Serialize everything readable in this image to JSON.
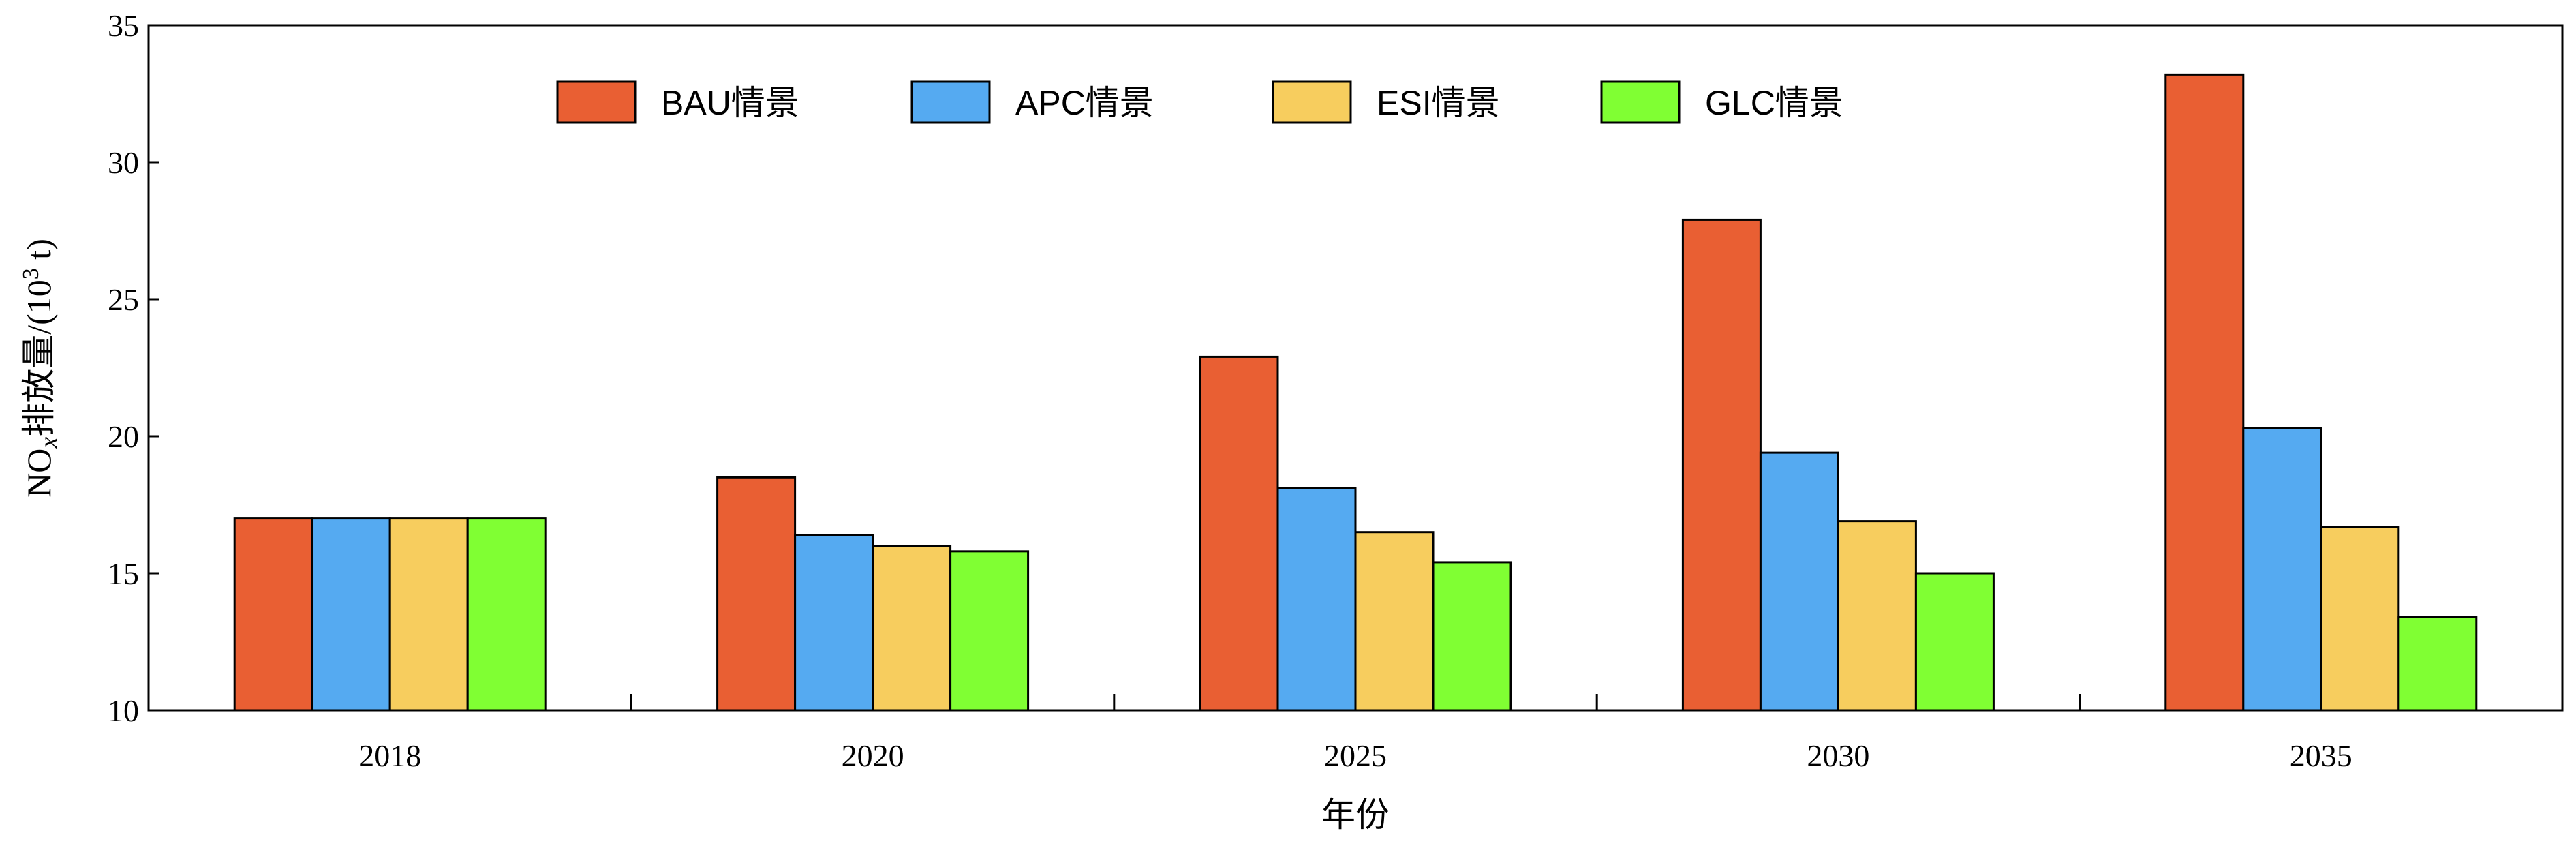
{
  "chart_data": {
    "type": "bar",
    "xlabel": "年份",
    "ylabel": "NOx排放量/(10³ t)",
    "ylabel_parts": {
      "main": "NO",
      "sub": "x",
      "cn": "排放量/(10",
      "sup": "3",
      "tail": " t)"
    },
    "ylim": [
      10,
      35
    ],
    "yticks": [
      10,
      15,
      20,
      25,
      30,
      35
    ],
    "categories": [
      "2018",
      "2020",
      "2025",
      "2030",
      "2035"
    ],
    "legend_position": "top-center",
    "grid": false,
    "series": [
      {
        "name": "BAU情景",
        "color": "#E95F33",
        "values": [
          17.0,
          18.5,
          22.9,
          27.9,
          33.2
        ]
      },
      {
        "name": "APC情景",
        "color": "#55AAF1",
        "values": [
          17.0,
          16.4,
          18.1,
          19.4,
          20.3
        ]
      },
      {
        "name": "ESI情景",
        "color": "#F7CD5E",
        "values": [
          17.0,
          16.0,
          16.5,
          16.9,
          16.7
        ]
      },
      {
        "name": "GLC情景",
        "color": "#80FF33",
        "values": [
          17.0,
          15.8,
          15.4,
          15.0,
          13.4
        ]
      }
    ]
  }
}
